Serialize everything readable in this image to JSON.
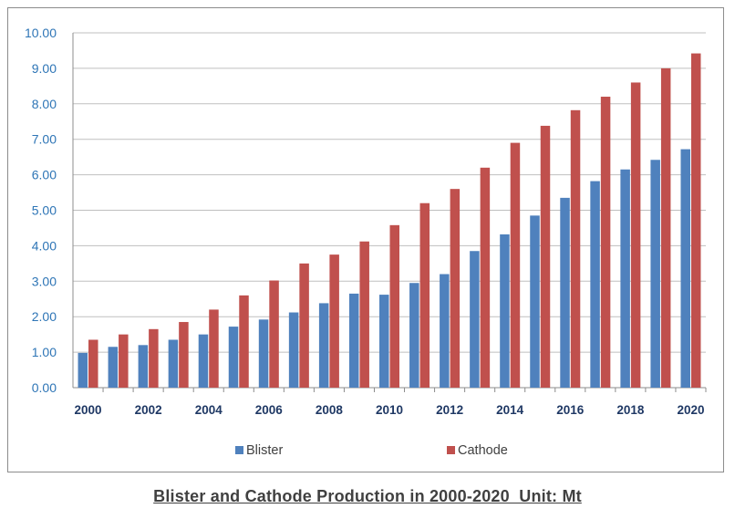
{
  "caption": "Blister and Cathode Production in 2000-2020  Unit: Mt",
  "chart_data": {
    "type": "bar",
    "title": "",
    "xlabel": "",
    "ylabel": "",
    "ylim": [
      0,
      10
    ],
    "yticks": [
      "0.00",
      "1.00",
      "2.00",
      "3.00",
      "4.00",
      "5.00",
      "6.00",
      "7.00",
      "8.00",
      "9.00",
      "10.00"
    ],
    "categories": [
      "2000",
      "2001",
      "2002",
      "2003",
      "2004",
      "2005",
      "2006",
      "2007",
      "2008",
      "2009",
      "2010",
      "2011",
      "2012",
      "2013",
      "2014",
      "2015",
      "2016",
      "2017",
      "2018",
      "2019",
      "2020"
    ],
    "xtick_labels": [
      "2000",
      "",
      "2002",
      "",
      "2004",
      "",
      "2006",
      "",
      "2008",
      "",
      "2010",
      "",
      "2012",
      "",
      "2014",
      "",
      "2016",
      "",
      "2018",
      "",
      "2020"
    ],
    "grid": true,
    "legend_position": "bottom",
    "series": [
      {
        "name": "Blister",
        "color": "#4f81bd",
        "values": [
          0.98,
          1.15,
          1.2,
          1.35,
          1.5,
          1.72,
          1.92,
          2.12,
          2.38,
          2.65,
          2.62,
          2.95,
          3.2,
          3.85,
          4.32,
          4.85,
          5.35,
          5.82,
          6.15,
          6.42,
          6.72
        ]
      },
      {
        "name": "Cathode",
        "color": "#c0504d",
        "values": [
          1.35,
          1.5,
          1.65,
          1.85,
          2.2,
          2.6,
          3.02,
          3.5,
          3.75,
          4.12,
          4.58,
          5.2,
          5.6,
          6.2,
          6.9,
          7.38,
          7.82,
          8.2,
          8.6,
          9.0,
          9.42
        ]
      }
    ]
  }
}
